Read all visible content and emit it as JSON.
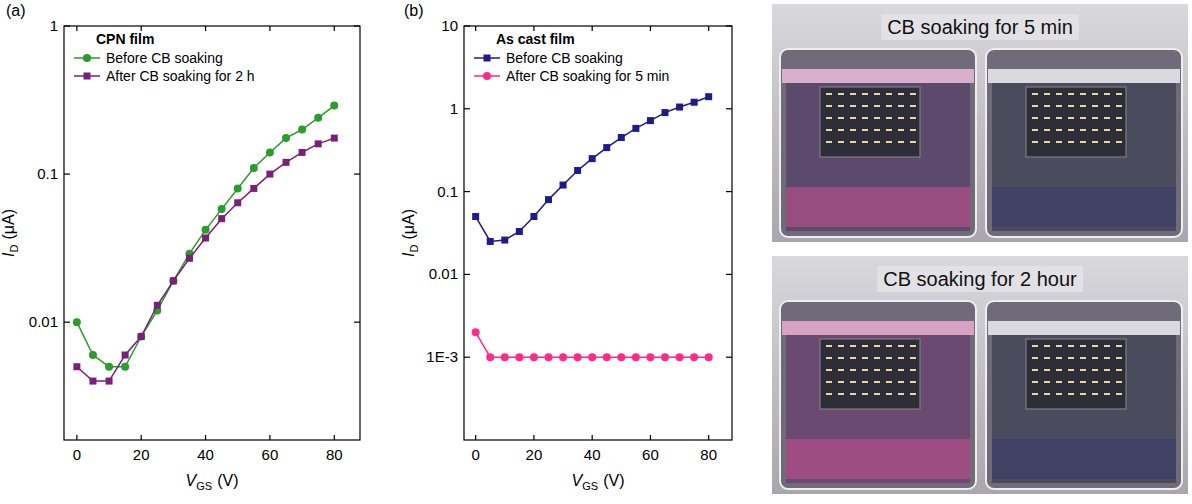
{
  "chart_data": [
    {
      "type": "line",
      "label": "(a)",
      "title": "CPN film",
      "log": "y",
      "legend": "upper left",
      "xlabel": {
        "symbol": "V",
        "sub": "GS",
        "unit": "(V)"
      },
      "ylabel": {
        "symbol": "I",
        "sub": "D",
        "unit": "(μA)"
      },
      "x": [
        0,
        5,
        10,
        15,
        20,
        25,
        30,
        35,
        40,
        45,
        50,
        55,
        60,
        65,
        70,
        75,
        80
      ],
      "xlim": [
        -4,
        88
      ],
      "xticks": [
        0,
        20,
        40,
        60,
        80
      ],
      "ylim": [
        0.0016,
        1
      ],
      "yticks": [
        0.01,
        0.1,
        1
      ],
      "series": [
        {
          "name": "Before CB soaking",
          "color": "#2a9d2a",
          "marker": "circle",
          "values": [
            0.01,
            0.006,
            0.005,
            0.005,
            0.008,
            0.012,
            0.019,
            0.029,
            0.042,
            0.058,
            0.08,
            0.11,
            0.14,
            0.175,
            0.2,
            0.24,
            0.29
          ]
        },
        {
          "name": "After CB soaking for 2 h",
          "color": "#7a1f7a",
          "marker": "square",
          "values": [
            0.005,
            0.004,
            0.004,
            0.006,
            0.008,
            0.013,
            0.019,
            0.027,
            0.037,
            0.05,
            0.064,
            0.08,
            0.1,
            0.12,
            0.14,
            0.16,
            0.175
          ]
        }
      ]
    },
    {
      "type": "line",
      "label": "(b)",
      "title": "As cast film",
      "log": "y",
      "legend": "upper left",
      "xlabel": {
        "symbol": "V",
        "sub": "GS",
        "unit": "(V)"
      },
      "ylabel": {
        "symbol": "I",
        "sub": "D",
        "unit": "(μA)"
      },
      "x": [
        0,
        5,
        10,
        15,
        20,
        25,
        30,
        35,
        40,
        45,
        50,
        55,
        60,
        65,
        70,
        75,
        80
      ],
      "xlim": [
        -4,
        88
      ],
      "xticks": [
        0,
        20,
        40,
        60,
        80
      ],
      "ylim": [
        0.0001,
        10
      ],
      "yticks": [
        {
          "value": 0.001,
          "label": "1E-3"
        },
        0.01,
        0.1,
        1,
        10
      ],
      "series": [
        {
          "name": "Before CB soaking",
          "color": "#1c1c8f",
          "marker": "square",
          "values": [
            0.05,
            0.025,
            0.026,
            0.033,
            0.05,
            0.08,
            0.12,
            0.18,
            0.25,
            0.34,
            0.45,
            0.58,
            0.72,
            0.9,
            1.05,
            1.2,
            1.4
          ]
        },
        {
          "name": "After CB soaking for 5 min",
          "color": "#ff2a8a",
          "marker": "circle",
          "values": [
            0.002,
            0.001,
            0.001,
            0.001,
            0.001,
            0.001,
            0.001,
            0.001,
            0.001,
            0.001,
            0.001,
            0.001,
            0.001,
            0.001,
            0.001,
            0.001,
            0.001
          ]
        }
      ]
    }
  ],
  "photos": [
    {
      "caption": "CB soaking for 5 min"
    },
    {
      "caption": "CB soaking for 2 hour"
    }
  ]
}
